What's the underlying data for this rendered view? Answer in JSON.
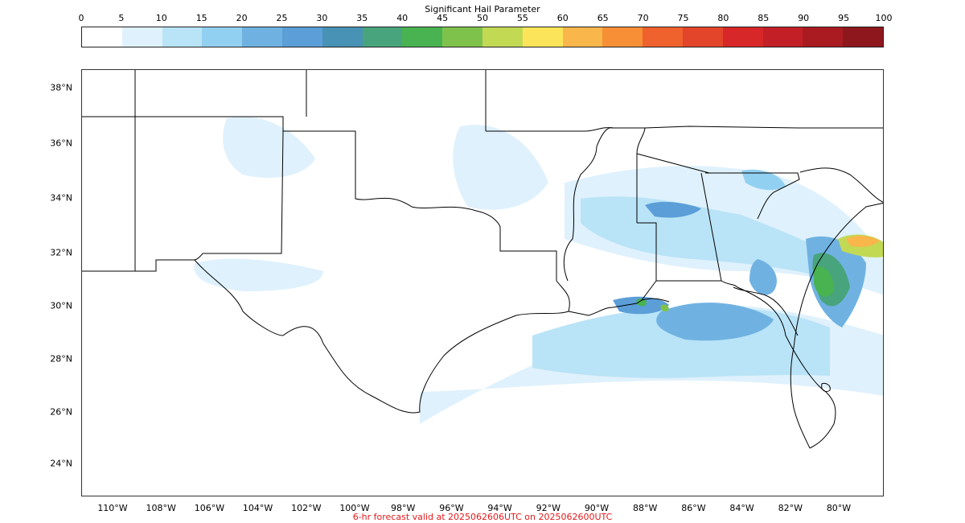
{
  "colorbar": {
    "title": "Significant Hail Parameter",
    "ticks": [
      "0",
      "5",
      "10",
      "15",
      "20",
      "25",
      "30",
      "35",
      "40",
      "45",
      "50",
      "55",
      "60",
      "65",
      "70",
      "75",
      "80",
      "85",
      "90",
      "95",
      "100"
    ],
    "colors": [
      "#ffffff",
      "#dff1fc",
      "#b9e3f7",
      "#92d0f2",
      "#6fb2e2",
      "#5b9ed8",
      "#4893b5",
      "#48a47c",
      "#48b350",
      "#7fc24b",
      "#c2d954",
      "#fbe459",
      "#f9b64b",
      "#f68f36",
      "#ef612d",
      "#e3452a",
      "#d82728",
      "#c21f26",
      "#a91b21",
      "#8e171d"
    ]
  },
  "axes": {
    "lat_labels": [
      "38°N",
      "36°N",
      "34°N",
      "32°N",
      "30°N",
      "28°N",
      "26°N",
      "24°N"
    ],
    "lon_labels": [
      "110°W",
      "108°W",
      "106°W",
      "104°W",
      "102°W",
      "100°W",
      "98°W",
      "96°W",
      "94°W",
      "92°W",
      "90°W",
      "88°W",
      "86°W",
      "84°W",
      "82°W",
      "80°W"
    ]
  },
  "caption": "6-hr forecast valid at 2025062606UTC on 2025062600UTC",
  "map": {
    "coastline_color": "#000000",
    "border_color": "#000000"
  }
}
